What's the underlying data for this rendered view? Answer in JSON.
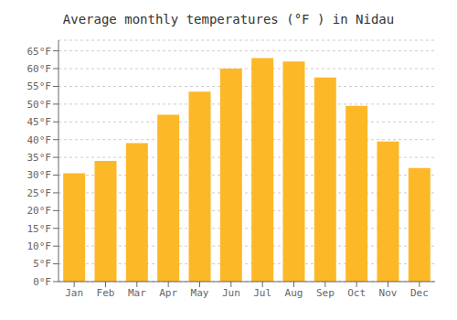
{
  "chart_data": {
    "type": "bar",
    "title": "Average monthly temperatures (°F ) in Nidau",
    "categories": [
      "Jan",
      "Feb",
      "Mar",
      "Apr",
      "May",
      "Jun",
      "Jul",
      "Aug",
      "Sep",
      "Oct",
      "Nov",
      "Dec"
    ],
    "values": [
      30.5,
      34.0,
      39.0,
      47.0,
      53.5,
      60.0,
      63.0,
      62.0,
      57.5,
      49.5,
      39.5,
      32.0
    ],
    "color": "#FDB827",
    "ylim": [
      0,
      68
    ],
    "yticks": [
      {
        "value": 0,
        "label": "0°F"
      },
      {
        "value": 5,
        "label": "5°F"
      },
      {
        "value": 10,
        "label": "10°F"
      },
      {
        "value": 15,
        "label": "15°F"
      },
      {
        "value": 20,
        "label": "20°F"
      },
      {
        "value": 25,
        "label": "25°F"
      },
      {
        "value": 30,
        "label": "30°F"
      },
      {
        "value": 35,
        "label": "35°F"
      },
      {
        "value": 40,
        "label": "40°F"
      },
      {
        "value": 45,
        "label": "45°F"
      },
      {
        "value": 50,
        "label": "50°F"
      },
      {
        "value": 55,
        "label": "55°F"
      },
      {
        "value": 60,
        "label": "60°F"
      },
      {
        "value": 65,
        "label": "65°F"
      }
    ],
    "grid": true
  }
}
